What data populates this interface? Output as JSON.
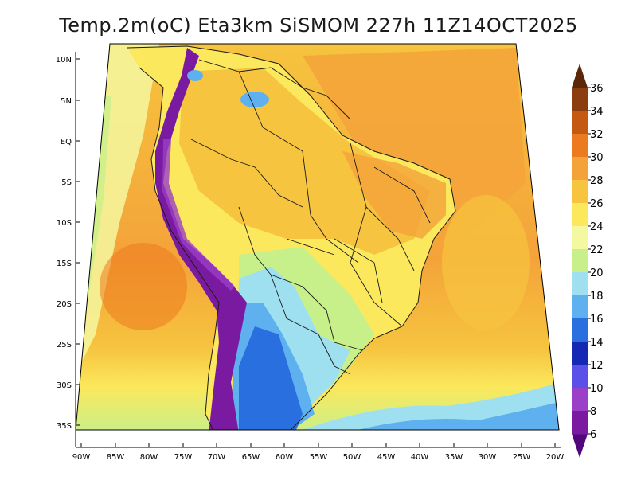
{
  "title": "Temp.2m(oC) Eta3km SiSMOM 227h 11Z14OCT2025",
  "lat_ticks": [
    "10N",
    "5N",
    "EQ",
    "5S",
    "10S",
    "15S",
    "20S",
    "25S",
    "30S",
    "35S"
  ],
  "lon_ticks": [
    "90W",
    "85W",
    "80W",
    "75W",
    "70W",
    "65W",
    "60W",
    "55W",
    "50W",
    "45W",
    "40W",
    "35W",
    "30W",
    "25W",
    "20W"
  ],
  "colorbar": {
    "levels": [
      "36",
      "34",
      "32",
      "30",
      "28",
      "26",
      "24",
      "22",
      "20",
      "18",
      "16",
      "14",
      "12",
      "10",
      "8",
      "6"
    ],
    "colors": [
      "#5c2708",
      "#8c3d10",
      "#c45a12",
      "#ec7a1e",
      "#f4a33a",
      "#f6c43e",
      "#fbe85c",
      "#f4f8a0",
      "#c8f08a",
      "#9fe0f0",
      "#5fb0ee",
      "#2a6fe0",
      "#1428b4",
      "#5a4fe8",
      "#9b3fc8",
      "#7a1aa0",
      "#52087a"
    ]
  }
}
